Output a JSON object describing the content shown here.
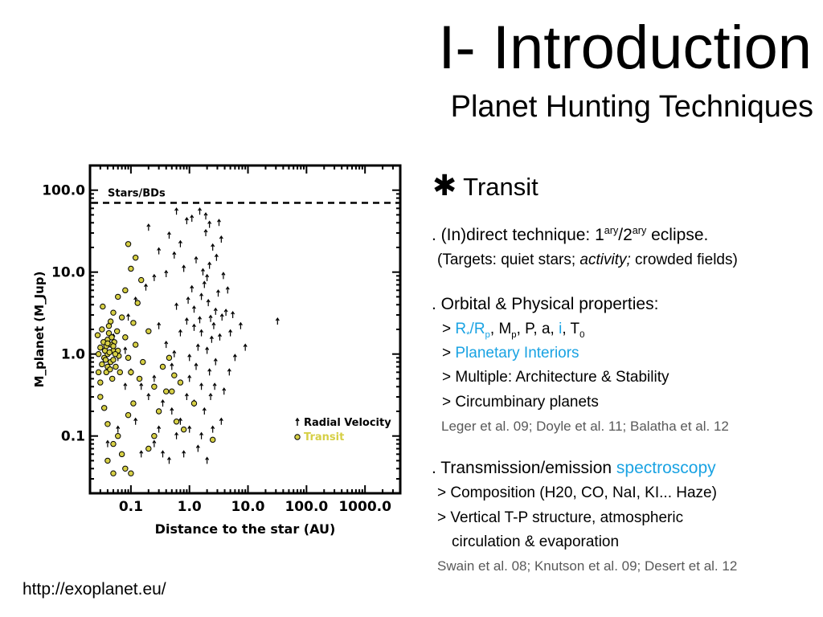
{
  "slide": {
    "title": "I- Introduction",
    "subtitle": "Planet Hunting Techniques",
    "footer_url": "http://exoplanet.eu/"
  },
  "section": {
    "heading": "Transit",
    "bullet1": {
      "text_a": ". (In)direct technique: 1",
      "sup_a": "ary",
      "text_b": "/2",
      "sup_b": "ary",
      "text_c": " eclipse.",
      "sub_a": "(Targets: quiet stars; ",
      "sub_italic": "activity;",
      "sub_b": " crowded fields)"
    },
    "bullet2": {
      "heading": ". Orbital & Physical properties:",
      "item1": {
        "prefix": "> ",
        "r_star": "R",
        "r_star_sub": "*",
        "slash": "/R",
        "r_p_sub": "p",
        "mid": ", M",
        "m_p_sub": "p",
        "rest": ", P, a, ",
        "inc": "i",
        "t0_prefix": ", T",
        "t0_sub": "0"
      },
      "item2_prefix": "> ",
      "item2": "Planetary Interiors",
      "item3": "> Multiple: Architecture & Stability",
      "item4": "> Circumbinary planets",
      "refs": "Leger et al. 09; Doyle et al. 11; Balatha et al. 12"
    },
    "bullet3": {
      "heading_a": ". Transmission/emission ",
      "heading_b": "spectroscopy",
      "item1": "> Composition (H20, CO, NaI, KI... Haze)",
      "item2": "> Vertical T-P structure, atmospheric",
      "item2b": "circulation & evaporation",
      "refs": "Swain et al. 08; Knutson et al. 09; Desert et al. 12"
    }
  },
  "colors": {
    "highlight": "#1aa3e3",
    "transit": "#d6cf45",
    "refs": "#595959"
  },
  "chart_data": {
    "type": "scatter",
    "xlabel": "Distance to the star (AU)",
    "ylabel": "M_planet (M_Jup)",
    "xscale": "log",
    "yscale": "log",
    "xlim": [
      0.02,
      4000
    ],
    "ylim": [
      0.02,
      200
    ],
    "x_ticks": [
      "0.1",
      "1.0",
      "10.0",
      "100.0",
      "1000.0"
    ],
    "y_ticks": [
      "100.0",
      "10.0",
      "1.0",
      "0.1"
    ],
    "threshold_label": "Stars/BDs",
    "threshold_value": 70,
    "legend": {
      "placement": "bottom-right",
      "entries": [
        "Radial Velocity",
        "Transit"
      ]
    },
    "series": [
      {
        "name": "Radial Velocity",
        "marker": "arrow",
        "points": [
          [
            0.9,
            2.5
          ],
          [
            1.2,
            3.5
          ],
          [
            1.6,
            1.8
          ],
          [
            2.1,
            4.2
          ],
          [
            2.6,
            2.2
          ],
          [
            3.1,
            5.5
          ],
          [
            1.4,
            1.2
          ],
          [
            1.8,
            7
          ],
          [
            2.4,
            1.5
          ],
          [
            3.6,
            2.8
          ],
          [
            4.2,
            3.2
          ],
          [
            0.7,
            1.8
          ],
          [
            0.6,
            3.8
          ],
          [
            1.0,
            0.9
          ],
          [
            1.5,
            2.6
          ],
          [
            2.0,
            1.1
          ],
          [
            2.8,
            0.8
          ],
          [
            3.3,
            1.6
          ],
          [
            1.1,
            6.2
          ],
          [
            1.7,
            10
          ],
          [
            2.2,
            12
          ],
          [
            2.9,
            15
          ],
          [
            3.8,
            9
          ],
          [
            1.3,
            14
          ],
          [
            0.8,
            11
          ],
          [
            2.5,
            20
          ],
          [
            3.5,
            25
          ],
          [
            1.9,
            30
          ],
          [
            4.5,
            6
          ],
          [
            5.5,
            3
          ],
          [
            1.0,
            0.5
          ],
          [
            1.6,
            0.4
          ],
          [
            2.2,
            0.6
          ],
          [
            0.5,
            0.7
          ],
          [
            0.4,
            1.3
          ],
          [
            0.3,
            2.2
          ],
          [
            0.25,
            0.5
          ],
          [
            0.2,
            0.3
          ],
          [
            0.35,
            0.25
          ],
          [
            0.15,
            0.4
          ],
          [
            0.5,
            0.2
          ],
          [
            0.7,
            0.15
          ],
          [
            0.9,
            0.3
          ],
          [
            1.2,
            0.25
          ],
          [
            1.8,
            0.2
          ],
          [
            2.5,
            0.12
          ],
          [
            3.5,
            0.15
          ],
          [
            0.6,
            0.1
          ],
          [
            0.3,
            0.12
          ],
          [
            0.12,
            0.15
          ],
          [
            0.1,
            0.6
          ],
          [
            0.08,
            1.1
          ],
          [
            0.06,
            0.9
          ],
          [
            0.05,
            1.6
          ],
          [
            0.09,
            2.8
          ],
          [
            0.12,
            4.5
          ],
          [
            0.18,
            6.5
          ],
          [
            0.25,
            8.5
          ],
          [
            0.4,
            9.5
          ],
          [
            0.55,
            16
          ],
          [
            0.7,
            22
          ],
          [
            0.45,
            28
          ],
          [
            0.2,
            35
          ],
          [
            0.3,
            18
          ],
          [
            1.1,
            45
          ],
          [
            1.5,
            55
          ],
          [
            2.2,
            38
          ],
          [
            0.9,
            42
          ],
          [
            0.6,
            55
          ],
          [
            1.9,
            48
          ],
          [
            3.2,
            40
          ],
          [
            2.0,
            0.05
          ],
          [
            1.4,
            0.07
          ],
          [
            0.8,
            0.06
          ],
          [
            0.45,
            0.05
          ],
          [
            0.06,
            0.12
          ],
          [
            0.08,
            0.4
          ],
          [
            2.8,
            3.3
          ],
          [
            1.2,
            2.1
          ],
          [
            0.95,
            4.5
          ],
          [
            1.6,
            5
          ],
          [
            2.3,
            2.7
          ],
          [
            2.0,
            8.5
          ],
          [
            1.3,
            0.7
          ],
          [
            7.5,
            2.2
          ],
          [
            32,
            2.5
          ],
          [
            9,
            1.2
          ],
          [
            6,
            0.9
          ],
          [
            4.8,
            0.6
          ],
          [
            3.9,
            0.35
          ],
          [
            2.7,
            0.4
          ],
          [
            5,
            1.8
          ],
          [
            0.04,
            0.08
          ],
          [
            0.15,
            0.06
          ],
          [
            0.25,
            0.08
          ],
          [
            0.35,
            0.06
          ],
          [
            1.0,
            0.12
          ],
          [
            1.6,
            0.1
          ],
          [
            2.3,
            0.3
          ],
          [
            0.55,
            1.0
          ]
        ]
      },
      {
        "name": "Transit",
        "marker": "circle",
        "points": [
          [
            0.03,
            1.2
          ],
          [
            0.035,
            0.9
          ],
          [
            0.04,
            1.5
          ],
          [
            0.045,
            0.8
          ],
          [
            0.05,
            1.1
          ],
          [
            0.04,
            0.7
          ],
          [
            0.032,
            2.0
          ],
          [
            0.038,
            0.6
          ],
          [
            0.042,
            1.8
          ],
          [
            0.048,
            0.5
          ],
          [
            0.055,
            0.7
          ],
          [
            0.052,
            1.4
          ],
          [
            0.028,
            1.0
          ],
          [
            0.03,
            0.45
          ],
          [
            0.045,
            2.5
          ],
          [
            0.05,
            3.2
          ],
          [
            0.06,
            1.1
          ],
          [
            0.065,
            0.6
          ],
          [
            0.07,
            2.8
          ],
          [
            0.08,
            1.6
          ],
          [
            0.033,
            3.8
          ],
          [
            0.027,
            1.7
          ],
          [
            0.04,
            1.0
          ],
          [
            0.046,
            1.3
          ],
          [
            0.036,
            1.1
          ],
          [
            0.05,
            0.85
          ],
          [
            0.058,
            1.9
          ],
          [
            0.062,
            0.95
          ],
          [
            0.038,
            1.25
          ],
          [
            0.044,
            0.65
          ],
          [
            0.09,
            0.9
          ],
          [
            0.1,
            0.6
          ],
          [
            0.12,
            1.3
          ],
          [
            0.14,
            0.5
          ],
          [
            0.16,
            0.8
          ],
          [
            0.2,
            1.9
          ],
          [
            0.25,
            0.4
          ],
          [
            0.3,
            0.2
          ],
          [
            0.35,
            0.7
          ],
          [
            0.4,
            0.35
          ],
          [
            0.11,
            2.4
          ],
          [
            0.13,
            4.2
          ],
          [
            0.15,
            8
          ],
          [
            0.12,
            15
          ],
          [
            0.09,
            22
          ],
          [
            0.1,
            11
          ],
          [
            0.08,
            6
          ],
          [
            0.06,
            5
          ],
          [
            0.11,
            0.25
          ],
          [
            0.09,
            0.18
          ],
          [
            0.06,
            0.1
          ],
          [
            0.07,
            0.06
          ],
          [
            0.05,
            0.08
          ],
          [
            0.04,
            0.14
          ],
          [
            0.035,
            0.22
          ],
          [
            0.03,
            0.3
          ],
          [
            0.08,
            0.04
          ],
          [
            0.1,
            0.035
          ],
          [
            0.05,
            0.035
          ],
          [
            0.04,
            0.05
          ],
          [
            0.5,
            0.35
          ],
          [
            0.6,
            0.15
          ],
          [
            0.8,
            0.12
          ],
          [
            1.2,
            0.25
          ],
          [
            0.45,
            0.9
          ],
          [
            0.55,
            0.55
          ],
          [
            0.7,
            0.45
          ],
          [
            2.5,
            0.09
          ],
          [
            0.25,
            0.1
          ],
          [
            0.2,
            0.07
          ],
          [
            0.028,
            0.6
          ],
          [
            0.032,
            0.75
          ],
          [
            0.034,
            1.4
          ],
          [
            0.043,
            1.05
          ],
          [
            0.047,
            1.6
          ],
          [
            0.05,
            1.25
          ],
          [
            0.054,
            1.0
          ],
          [
            0.04,
            1.35
          ],
          [
            0.037,
            0.85
          ],
          [
            0.042,
            2.2
          ]
        ]
      }
    ]
  }
}
